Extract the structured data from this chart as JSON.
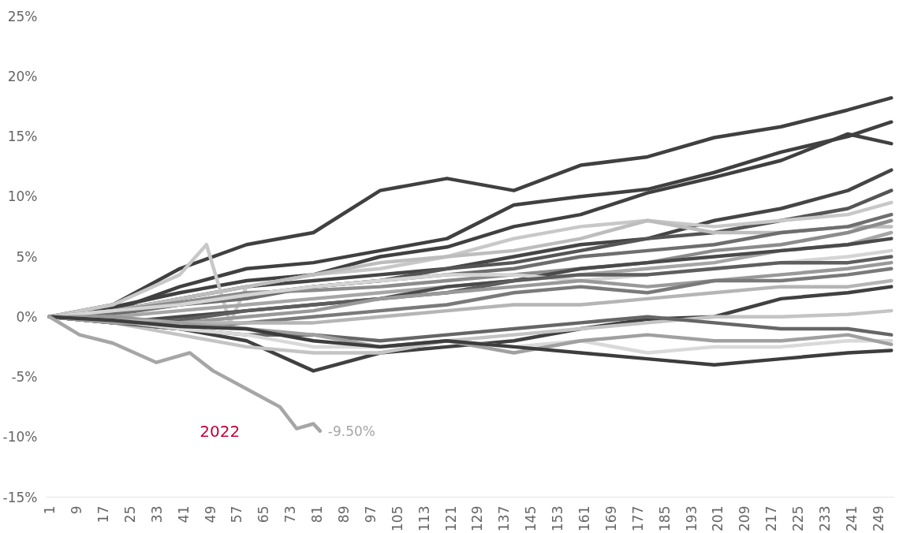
{
  "chart_data": {
    "type": "line",
    "x": [
      1,
      20,
      40,
      60,
      80,
      100,
      120,
      140,
      160,
      180,
      200,
      220,
      240,
      253
    ],
    "xlim": [
      0,
      254
    ],
    "xticks": [
      1,
      9,
      17,
      25,
      33,
      41,
      49,
      57,
      65,
      73,
      81,
      89,
      97,
      105,
      113,
      121,
      129,
      137,
      145,
      153,
      161,
      169,
      177,
      185,
      193,
      201,
      209,
      217,
      225,
      233,
      241,
      249
    ],
    "ylim": [
      -15,
      25
    ],
    "yticks": [
      {
        "value": -15,
        "label": "-15%"
      },
      {
        "value": -10,
        "label": "-10%"
      },
      {
        "value": -5,
        "label": "-5%"
      },
      {
        "value": 0,
        "label": "0%"
      },
      {
        "value": 5,
        "label": "5%"
      },
      {
        "value": 10,
        "label": "10%"
      },
      {
        "value": 15,
        "label": "15%"
      },
      {
        "value": 20,
        "label": "20%"
      },
      {
        "value": 25,
        "label": "25%"
      }
    ],
    "series": [
      {
        "color": "#404040",
        "values": [
          0,
          1,
          4,
          6,
          7,
          10.5,
          11.5,
          10.5,
          12.6,
          13.3,
          14.9,
          15.8,
          17.2,
          18.2
        ]
      },
      {
        "color": "#404040",
        "values": [
          0,
          0.5,
          2.5,
          4,
          4.5,
          5.5,
          6.5,
          9.3,
          10,
          10.6,
          12,
          13.7,
          15,
          16.2
        ]
      },
      {
        "color": "#404040",
        "values": [
          0,
          0.8,
          2,
          3,
          3.5,
          5,
          5.8,
          7.5,
          8.5,
          10.3,
          11.6,
          13,
          15.2,
          14.4
        ]
      },
      {
        "color": "#454545",
        "values": [
          0,
          0.5,
          1.5,
          2.5,
          3,
          3.5,
          4,
          5,
          6,
          6.5,
          8,
          9,
          10.5,
          12.2
        ]
      },
      {
        "color": "#555555",
        "values": [
          0,
          0.3,
          1,
          1.8,
          2.5,
          3,
          4,
          4.5,
          5.5,
          6.5,
          7,
          8,
          9,
          10.5
        ]
      },
      {
        "color": "#c8c8c8",
        "x": [
          1,
          20,
          40,
          48,
          55,
          60,
          80,
          100,
          120,
          140,
          160,
          180,
          200,
          220,
          240,
          253
        ],
        "values": [
          0,
          1,
          3.5,
          6,
          -0.5,
          2.5,
          3.5,
          4,
          5,
          6.5,
          7.5,
          8,
          7.5,
          8,
          8.5,
          9.5
        ]
      },
      {
        "color": "#bdbdbd",
        "values": [
          0,
          0.5,
          1.5,
          2.5,
          3.5,
          4.5,
          5,
          5.5,
          6.5,
          8,
          7,
          7,
          7.5,
          7.5
        ]
      },
      {
        "color": "#6e6e6e",
        "values": [
          0,
          0.2,
          1,
          1.5,
          2.5,
          3,
          3.5,
          4,
          5,
          5.5,
          6,
          7,
          7.5,
          8.5
        ]
      },
      {
        "color": "#8c8c8c",
        "values": [
          0,
          0.5,
          1.2,
          2,
          2.2,
          2.5,
          3,
          3.5,
          4,
          4.5,
          5.5,
          6,
          7,
          8
        ]
      },
      {
        "color": "#a6a6a6",
        "values": [
          0,
          0,
          0.5,
          1,
          1.5,
          2,
          2.5,
          3,
          3.5,
          4,
          4.5,
          5.5,
          6,
          7
        ]
      },
      {
        "color": "#4a4a4a",
        "values": [
          0,
          -0.5,
          0,
          0.5,
          1,
          1.5,
          2.5,
          3,
          4,
          4.5,
          5,
          5.5,
          6,
          6.5
        ]
      },
      {
        "color": "#d4d4d4",
        "values": [
          0,
          0.5,
          1,
          1.8,
          2.5,
          3,
          3.5,
          3.5,
          3,
          3.5,
          4,
          4.5,
          5,
          5.5
        ]
      },
      {
        "color": "#5e5e5e",
        "values": [
          0,
          -0.5,
          -0.3,
          0.5,
          1,
          1.5,
          2,
          3,
          3.5,
          3.5,
          4,
          4.5,
          4.5,
          5
        ]
      },
      {
        "color": "#999999",
        "values": [
          0,
          0,
          -0.5,
          0,
          0.5,
          1.5,
          2,
          2.5,
          3,
          2.5,
          3,
          3.5,
          4,
          4.5
        ]
      },
      {
        "color": "#7a7a7a",
        "values": [
          0,
          -0.5,
          -1,
          -0.5,
          0,
          0.5,
          1,
          2,
          2.5,
          2,
          3,
          3,
          3.5,
          4
        ]
      },
      {
        "color": "#b5b5b5",
        "values": [
          0,
          -0.3,
          -0.5,
          -0.5,
          -0.5,
          0,
          0.5,
          1,
          1,
          1.5,
          2,
          2.5,
          2.5,
          3
        ]
      },
      {
        "color": "#404040",
        "values": [
          0,
          -0.5,
          -1,
          -2,
          -4.5,
          -3,
          -2.5,
          -2,
          -1,
          -0.2,
          0,
          1.5,
          2,
          2.5
        ]
      },
      {
        "color": "#c4c4c4",
        "values": [
          0,
          -0.5,
          -1.5,
          -2.5,
          -3,
          -3,
          -2,
          -1.5,
          -1,
          -0.5,
          0,
          0,
          0.2,
          0.5
        ]
      },
      {
        "color": "#666666",
        "values": [
          0,
          -0.5,
          -1,
          -1.5,
          -1.5,
          -2,
          -1.5,
          -1,
          -0.5,
          0,
          -0.5,
          -1,
          -1,
          -1.5
        ]
      },
      {
        "color": "#d9d9d9",
        "values": [
          0,
          -0.3,
          -1,
          -1.5,
          -2.5,
          -2.5,
          -2,
          -2.5,
          -2,
          -3,
          -2.5,
          -2.5,
          -2,
          -2
        ]
      },
      {
        "color": "#a0a0a0",
        "values": [
          0,
          -0.5,
          -0.5,
          -1,
          -1.5,
          -2.5,
          -2,
          -3,
          -2,
          -1.5,
          -2,
          -2,
          -1.5,
          -2.3
        ]
      },
      {
        "color": "#3d3d3d",
        "values": [
          0,
          -0.3,
          -0.8,
          -1,
          -2,
          -2.5,
          -2,
          -2.5,
          -3,
          -3.5,
          -4,
          -3.5,
          -3,
          -2.8
        ]
      },
      {
        "name": "2022",
        "color": "#a6a6a6",
        "x": [
          1,
          10,
          20,
          33,
          43,
          50,
          60,
          70,
          75,
          80,
          82
        ],
        "values": [
          0,
          -1.5,
          -2.2,
          -3.8,
          -3,
          -4.5,
          -6,
          -7.5,
          -9.3,
          -8.9,
          -9.5
        ],
        "value_labels": [
          null,
          null,
          null,
          null,
          null,
          null,
          null,
          null,
          null,
          null,
          "-9.50%"
        ]
      }
    ]
  }
}
